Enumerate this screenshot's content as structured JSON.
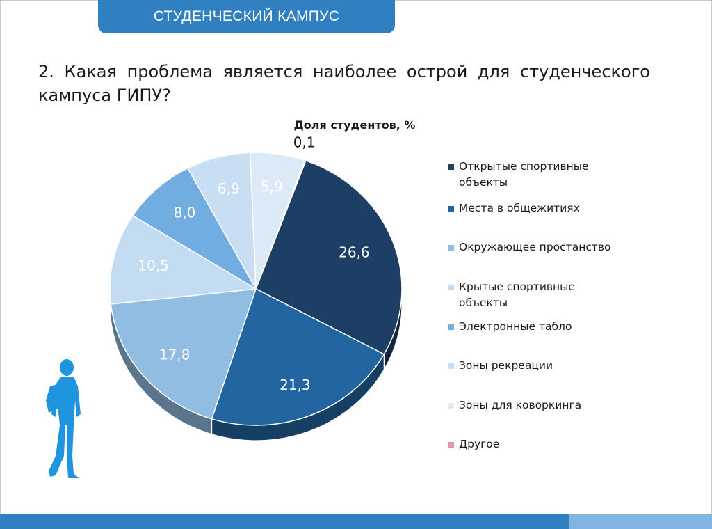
{
  "header": {
    "title": "СТУДЕНЧЕСКИЙ КАМПУС"
  },
  "question": "2. Какая проблема является наиболее острой для студенческого кампуса ГИПУ?",
  "chart_data": {
    "type": "pie",
    "title": "Доля студентов, %",
    "legend_position": "right",
    "series": [
      {
        "name": "Открытые спортивные объекты",
        "value": 26.6,
        "label": "26,6",
        "color": "#1d3f66"
      },
      {
        "name": "Места в общежитиях",
        "value": 21.3,
        "label": "21,3",
        "color": "#2265a0"
      },
      {
        "name": "Окружающее простанство",
        "value": 17.8,
        "label": "17,8",
        "color": "#92bde2"
      },
      {
        "name": "Крытые спортивные объекты",
        "value": 10.5,
        "label": "10,5",
        "color": "#c4dcf1"
      },
      {
        "name": "Электронные табло",
        "value": 8.0,
        "label": "8,0",
        "color": "#72ade2"
      },
      {
        "name": "Зоны рекреации",
        "value": 6.9,
        "label": "6,9",
        "color": "#c8def3"
      },
      {
        "name": "Зоны для коворкинга",
        "value": 5.9,
        "label": "5,9",
        "color": "#dce9f6"
      },
      {
        "name": "Другое",
        "value": 0.1,
        "label": "0,1",
        "color": "#e39aa0"
      }
    ]
  },
  "colors": {
    "header": "#2f7fc1",
    "footer_dark": "#2f7fc1",
    "footer_light": "#7fb4e3",
    "figure": "#1e95de"
  },
  "icons": {
    "student": "student-silhouette-icon"
  }
}
